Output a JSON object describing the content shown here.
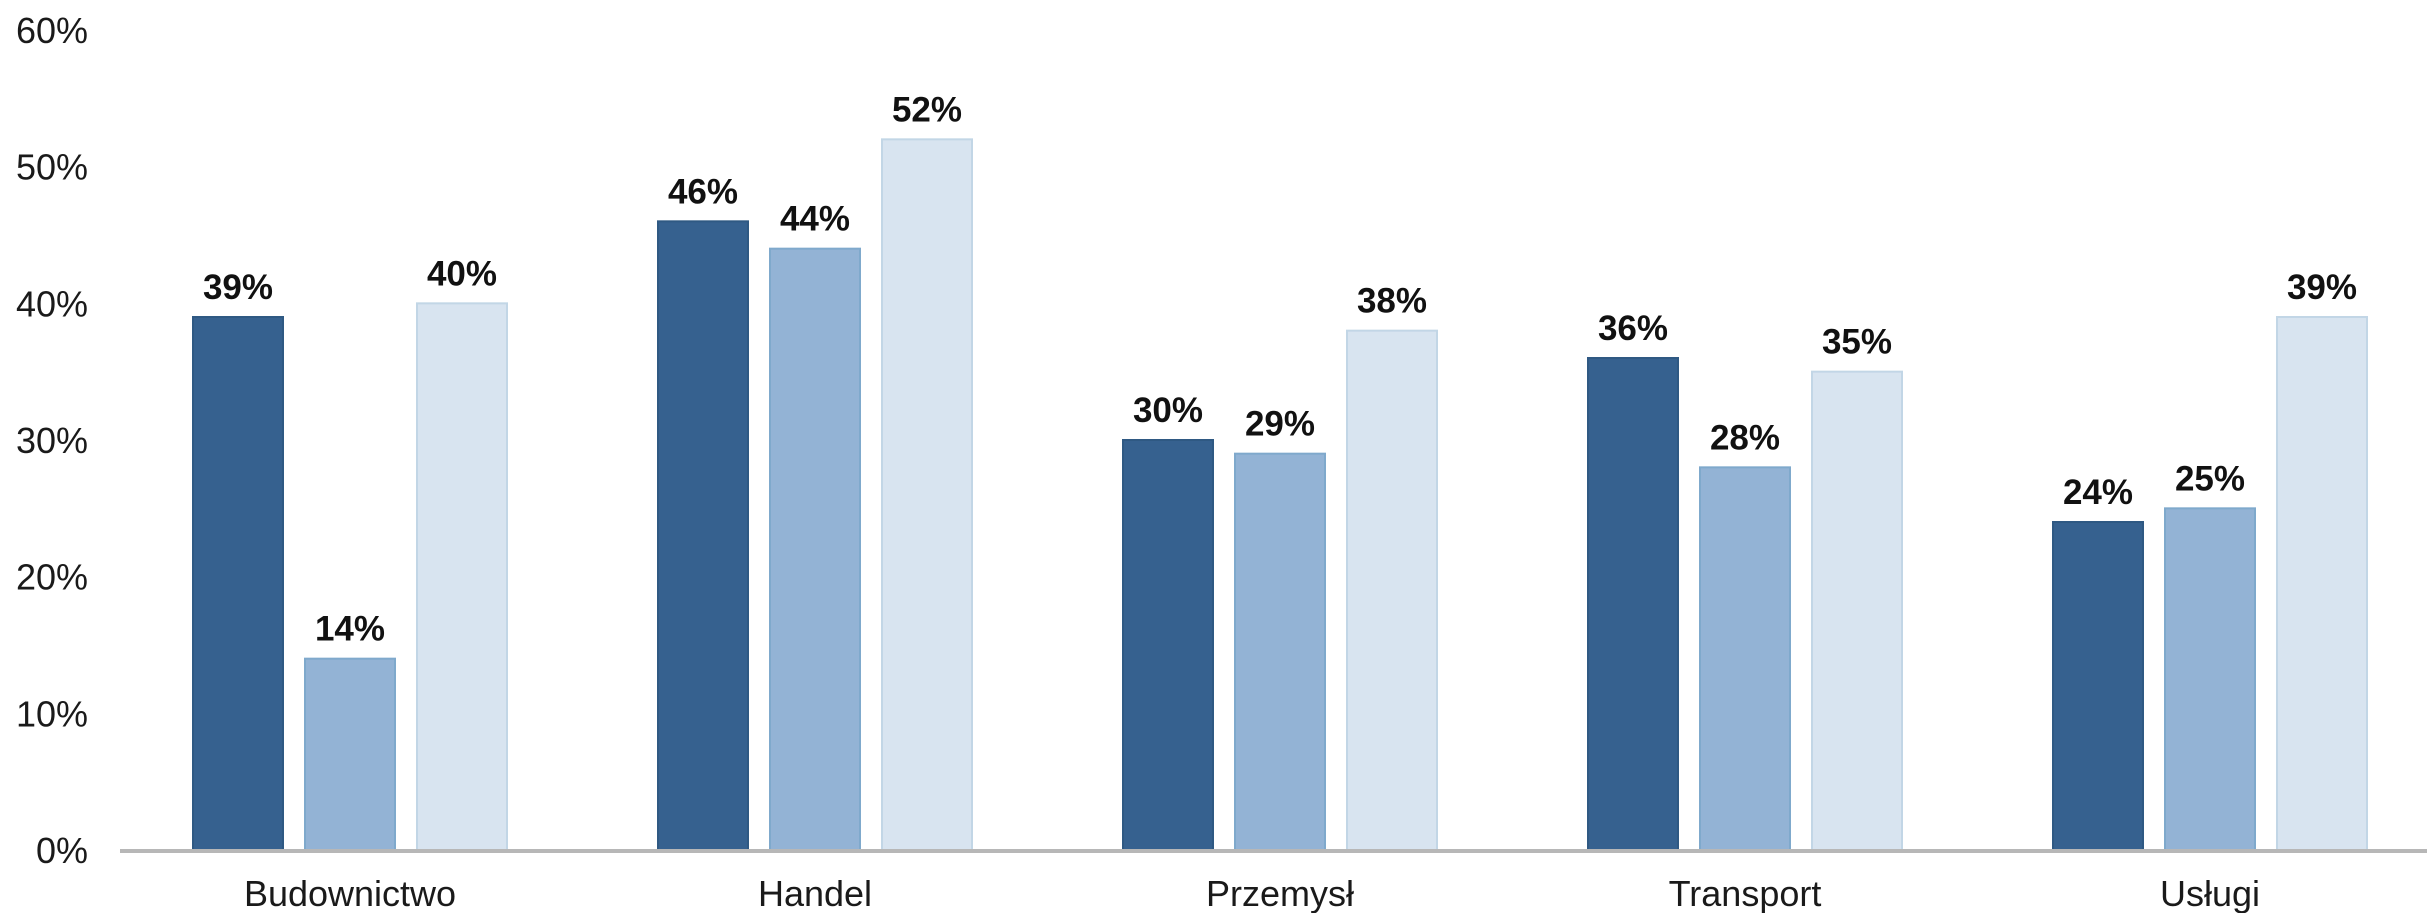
{
  "chart_data": {
    "type": "bar",
    "categories": [
      "Budownictwo",
      "Handel",
      "Przemysł",
      "Transport",
      "Usługi"
    ],
    "series": [
      {
        "color": "#36618f",
        "values": [
          39,
          46,
          30,
          36,
          24
        ]
      },
      {
        "color": "#93b3d5",
        "values": [
          14,
          44,
          29,
          28,
          25
        ]
      },
      {
        "color": "#d8e4f0",
        "values": [
          40,
          52,
          38,
          35,
          39
        ]
      }
    ],
    "data_labels": [
      [
        "39%",
        "46%",
        "30%",
        "36%",
        "24%"
      ],
      [
        "14%",
        "44%",
        "29%",
        "28%",
        "25%"
      ],
      [
        "40%",
        "52%",
        "38%",
        "35%",
        "39%"
      ]
    ],
    "y_ticks": [
      "0%",
      "10%",
      "20%",
      "30%",
      "40%",
      "50%",
      "60%"
    ],
    "ylim": [
      0,
      60
    ],
    "grid": false,
    "legend": "none",
    "axis_color": "#b7b7b7"
  }
}
